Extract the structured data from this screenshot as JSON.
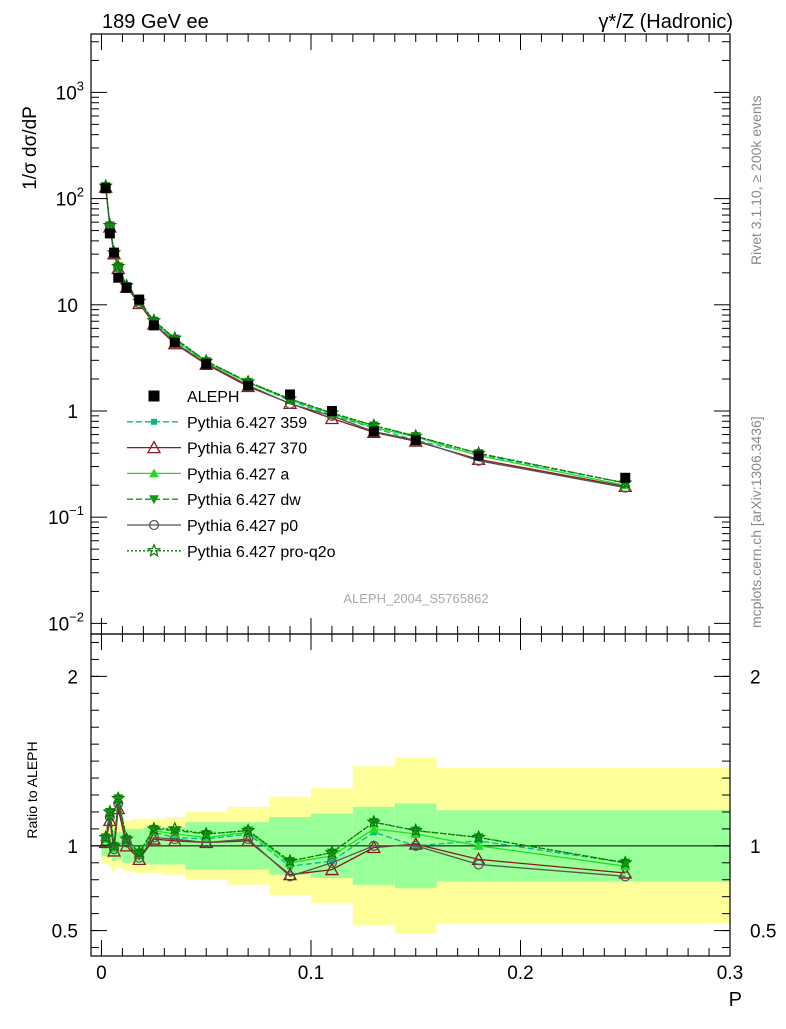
{
  "header": {
    "left_title": "189 GeV ee",
    "right_title_symbol": "γ*/Z",
    "right_title_text": " (Hadronic)"
  },
  "side_labels": {
    "rivet": "Rivet 3.1.10, ≥ 200k events",
    "mcplots": "mcplots.cern.ch [arXiv:1306.3436]"
  },
  "watermark": "ALEPH_2004_S5765862",
  "chart_data": {
    "type": "line",
    "title": "189 GeV ee",
    "xlabel": "P",
    "ylabel_top": "1/σ  dσ/dP",
    "ylabel_bottom": "Ratio to ALEPH",
    "xlim": [
      -0.005,
      0.3
    ],
    "ylim_top_log10": [
      -2.1,
      3.55
    ],
    "ylim_bottom": [
      0.35,
      2.25
    ],
    "x_ticks": [
      "0",
      "0.1",
      "0.2",
      "0.3"
    ],
    "x_tick_values": [
      0,
      0.1,
      0.2,
      0.3
    ],
    "y_ticks_top": [
      {
        "value": 0.01,
        "base": "10",
        "exp": "−2"
      },
      {
        "value": 0.1,
        "base": "10",
        "exp": "−1"
      },
      {
        "value": 1,
        "base": "1",
        "exp": ""
      },
      {
        "value": 10,
        "base": "10",
        "exp": ""
      },
      {
        "value": 100,
        "base": "10",
        "exp": "2"
      },
      {
        "value": 1000,
        "base": "10",
        "exp": "3"
      }
    ],
    "y_ticks_bottom": [
      {
        "value": 0.5,
        "label": "0.5"
      },
      {
        "value": 1,
        "label": "1"
      },
      {
        "value": 2,
        "label": "2"
      }
    ],
    "x": [
      0.002,
      0.004,
      0.006,
      0.008,
      0.012,
      0.018,
      0.025,
      0.035,
      0.05,
      0.07,
      0.09,
      0.11,
      0.13,
      0.15,
      0.18,
      0.25
    ],
    "x_edges": [
      0,
      0.003,
      0.005,
      0.007,
      0.01,
      0.015,
      0.02,
      0.03,
      0.04,
      0.06,
      0.08,
      0.1,
      0.12,
      0.14,
      0.16,
      0.2,
      0.3
    ],
    "band_inner": [
      [
        0.94,
        1.06
      ],
      [
        0.93,
        1.07
      ],
      [
        0.91,
        1.09
      ],
      [
        0.92,
        1.08
      ],
      [
        0.9,
        1.1
      ],
      [
        0.9,
        1.1
      ],
      [
        0.89,
        1.11
      ],
      [
        0.89,
        1.11
      ],
      [
        0.86,
        1.14
      ],
      [
        0.86,
        1.14
      ],
      [
        0.83,
        1.17
      ],
      [
        0.81,
        1.19
      ],
      [
        0.77,
        1.23
      ],
      [
        0.75,
        1.25
      ],
      [
        0.79,
        1.21
      ],
      [
        0.79,
        1.21
      ]
    ],
    "band_outer": [
      [
        0.9,
        1.1
      ],
      [
        0.88,
        1.12
      ],
      [
        0.85,
        1.15
      ],
      [
        0.87,
        1.13
      ],
      [
        0.85,
        1.15
      ],
      [
        0.84,
        1.16
      ],
      [
        0.84,
        1.16
      ],
      [
        0.83,
        1.17
      ],
      [
        0.8,
        1.2
      ],
      [
        0.77,
        1.23
      ],
      [
        0.71,
        1.29
      ],
      [
        0.66,
        1.34
      ],
      [
        0.53,
        1.47
      ],
      [
        0.48,
        1.52
      ],
      [
        0.54,
        1.46
      ],
      [
        0.54,
        1.46
      ]
    ],
    "series": [
      {
        "name": "ALEPH",
        "color": "#000000",
        "dash": "",
        "marker": "square",
        "values": [
          125,
          47,
          31,
          18,
          14.5,
          11.2,
          6.4,
          4.4,
          2.78,
          1.73,
          1.43,
          1.0,
          0.64,
          0.53,
          0.38,
          0.235
        ],
        "ratio": [
          1,
          1,
          1,
          1,
          1,
          1,
          1,
          1,
          1,
          1,
          1,
          1,
          1,
          1,
          1,
          1
        ]
      },
      {
        "name": "Pythia 6.427 359",
        "color": "#00bb88",
        "dash": "6,3",
        "marker": "smallsquare",
        "values": [
          130,
          55,
          30.5,
          22.5,
          14.8,
          10.5,
          6.9,
          4.6,
          2.88,
          1.85,
          1.25,
          0.91,
          0.69,
          0.53,
          0.39,
          0.21
        ],
        "ratio": [
          1.04,
          1.17,
          0.98,
          1.25,
          1.02,
          0.94,
          1.08,
          1.05,
          1.04,
          1.07,
          0.88,
          0.91,
          1.08,
          1.0,
          1.03,
          0.9
        ]
      },
      {
        "name": "Pythia 6.427 370",
        "color": "#8b1a1a",
        "dash": "",
        "marker": "triangle-open",
        "values": [
          128,
          54,
          30.2,
          22.0,
          14.6,
          10.3,
          6.6,
          4.3,
          2.75,
          1.7,
          1.18,
          0.85,
          0.63,
          0.52,
          0.35,
          0.195
        ],
        "ratio": [
          1.02,
          1.15,
          0.97,
          1.22,
          1.0,
          0.92,
          1.04,
          1.03,
          1.02,
          1.03,
          0.83,
          0.86,
          0.99,
          1.01,
          0.92,
          0.84
        ]
      },
      {
        "name": "Pythia 6.427 a",
        "color": "#22dd22",
        "dash": "",
        "marker": "triangle",
        "values": [
          130,
          56,
          30.8,
          23,
          14.9,
          10.6,
          7.0,
          4.7,
          2.9,
          1.85,
          1.28,
          0.94,
          0.7,
          0.57,
          0.38,
          0.2
        ],
        "ratio": [
          1.04,
          1.19,
          0.99,
          1.27,
          1.03,
          0.95,
          1.09,
          1.07,
          1.05,
          1.08,
          0.9,
          0.94,
          1.1,
          1.07,
          1.0,
          0.88
        ]
      },
      {
        "name": "Pythia 6.427 dw",
        "color": "#119911",
        "dash": "6,3",
        "marker": "triangle-down",
        "values": [
          131,
          56,
          31,
          23,
          15,
          10.7,
          7.1,
          4.8,
          2.95,
          1.88,
          1.3,
          0.96,
          0.73,
          0.58,
          0.4,
          0.21
        ],
        "ratio": [
          1.05,
          1.2,
          1.0,
          1.28,
          1.04,
          0.96,
          1.1,
          1.09,
          1.07,
          1.09,
          0.91,
          0.96,
          1.14,
          1.09,
          1.05,
          0.9
        ]
      },
      {
        "name": "Pythia 6.427 p0",
        "color": "#555555",
        "dash": "",
        "marker": "circle-open",
        "values": [
          129,
          55,
          30.5,
          22.5,
          14.7,
          10.4,
          6.7,
          4.4,
          2.8,
          1.75,
          1.17,
          0.9,
          0.64,
          0.53,
          0.34,
          0.19
        ],
        "ratio": [
          1.03,
          1.17,
          0.98,
          1.25,
          1.02,
          0.93,
          1.05,
          1.04,
          1.02,
          1.04,
          0.82,
          0.9,
          1.0,
          1.0,
          0.89,
          0.82
        ]
      },
      {
        "name": "Pythia 6.427 pro-q2o",
        "color": "#007700",
        "dash": "2,2",
        "marker": "star",
        "values": [
          131,
          56,
          31,
          23,
          15.1,
          10.8,
          7.1,
          4.85,
          2.95,
          1.88,
          1.3,
          0.96,
          0.73,
          0.58,
          0.4,
          0.21
        ],
        "ratio": [
          1.05,
          1.2,
          1.0,
          1.28,
          1.04,
          0.96,
          1.1,
          1.1,
          1.07,
          1.09,
          0.91,
          0.96,
          1.14,
          1.09,
          1.05,
          0.9
        ]
      }
    ]
  }
}
